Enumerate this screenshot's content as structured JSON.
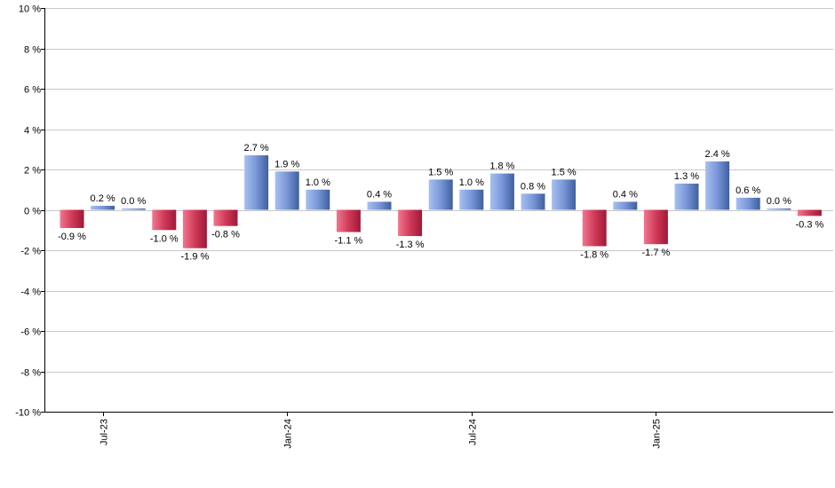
{
  "chart_data": {
    "type": "bar",
    "x": [
      "2023-06",
      "2023-07",
      "2023-08",
      "2023-09",
      "2023-10",
      "2023-11",
      "2023-12",
      "2024-01",
      "2024-02",
      "2024-03",
      "2024-04",
      "2024-05",
      "2024-06",
      "2024-07",
      "2024-08",
      "2024-09",
      "2024-10",
      "2024-11",
      "2024-12",
      "2025-01",
      "2025-02",
      "2025-03",
      "2025-04",
      "2025-05",
      "2025-06",
      "2025-07"
    ],
    "values": [
      -0.9,
      0.2,
      0.0,
      -1.0,
      -1.9,
      -0.8,
      2.7,
      1.9,
      1.0,
      -1.1,
      0.4,
      -1.3,
      1.5,
      1.0,
      1.8,
      0.8,
      1.5,
      -1.8,
      0.4,
      -1.7,
      1.3,
      2.4,
      0.6,
      0.0,
      -0.3,
      null
    ],
    "value_labels": [
      "-0.9 %",
      "0.2 %",
      "0.0 %",
      "-1.0 %",
      "-1.9 %",
      "-0.8 %",
      "2.7 %",
      "1.9 %",
      "1.0 %",
      "-1.1 %",
      "0.4 %",
      "-1.3 %",
      "1.5 %",
      "1.0 %",
      "1.8 %",
      "0.8 %",
      "1.5 %",
      "-1.8 %",
      "0.4 %",
      "-1.7 %",
      "1.3 %",
      "2.4 %",
      "0.6 %",
      "0.0 %",
      "-0.3 %",
      ""
    ],
    "ylim": [
      -10,
      10
    ],
    "y_ticks": [
      10,
      8,
      6,
      4,
      2,
      0,
      -2,
      -4,
      -6,
      -8,
      -10
    ],
    "y_tick_labels": [
      "10 %",
      "8 %",
      "6 %",
      "4 %",
      "2 %",
      "0 %",
      "-2 %",
      "-4 %",
      "-6 %",
      "-8 %",
      "-10 %"
    ],
    "x_tick_labels": [
      {
        "at": "2023-07",
        "label": "Jul-23"
      },
      {
        "at": "2024-01",
        "label": "Jan-24"
      },
      {
        "at": "2024-07",
        "label": "Jul-24"
      },
      {
        "at": "2025-01",
        "label": "Jan-25"
      }
    ],
    "title": "",
    "xlabel": "",
    "ylabel": "",
    "grid": true,
    "legend": "none",
    "colors": {
      "positive_light": "#a8c0f0",
      "positive_dark": "#3f5f9f",
      "negative_light": "#f07890",
      "negative_dark": "#a01838",
      "grid": "#c8c8c8",
      "axis": "#000000"
    }
  }
}
